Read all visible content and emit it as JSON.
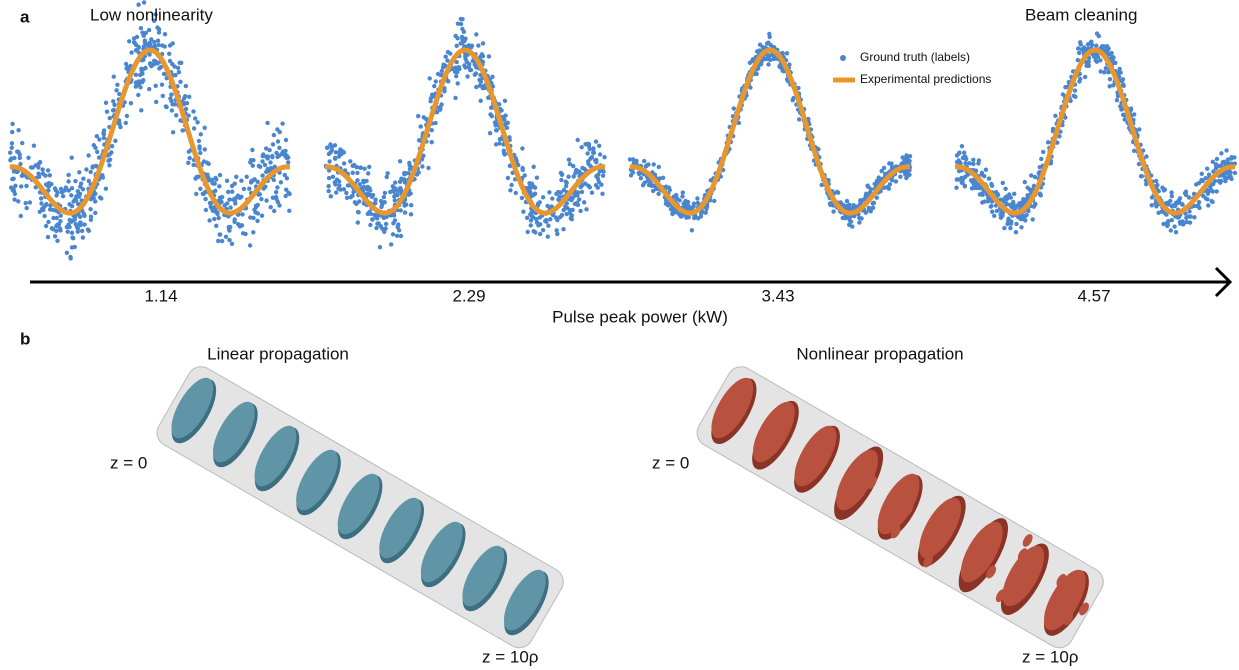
{
  "panel_a": {
    "label": "a",
    "left_annotation": "Low nonlinearity",
    "right_annotation": "Beam cleaning",
    "legend": [
      "Ground truth (labels)",
      "Experimental predictions"
    ],
    "axis": {
      "label": "Pulse peak power (kW)",
      "ticks": [
        1.14,
        2.29,
        3.43,
        4.57
      ]
    }
  },
  "panel_b": {
    "label": "b",
    "columns": [
      {
        "title": "Linear propagation",
        "start": "z = 0",
        "end": "z = 10ρ"
      },
      {
        "title": "Nonlinear propagation",
        "start": "z = 0",
        "end": "z = 10ρ"
      }
    ]
  }
}
